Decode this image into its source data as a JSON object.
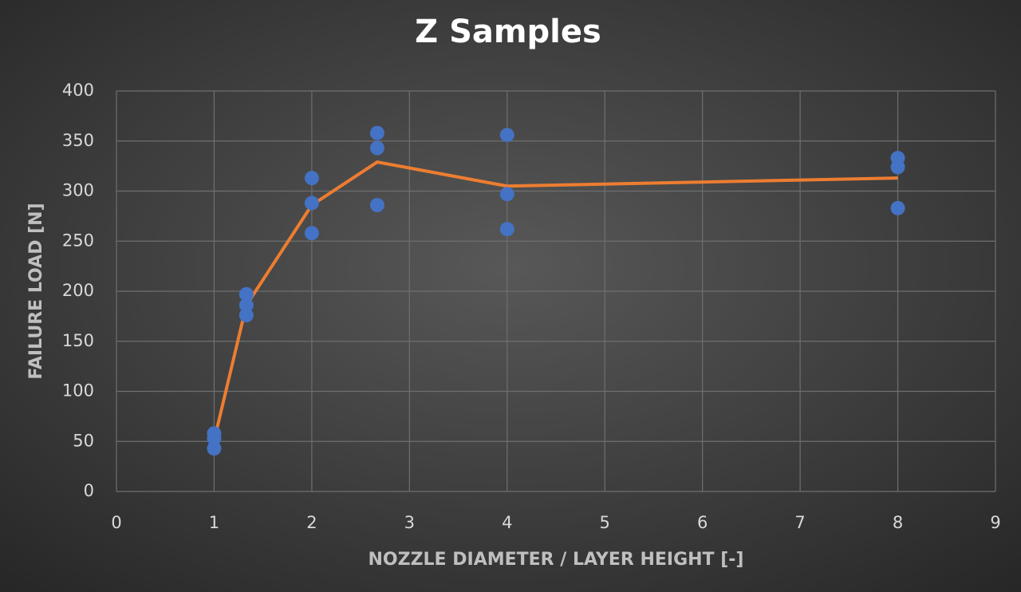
{
  "chart_data": {
    "type": "scatter",
    "title": "Z Samples",
    "x_label": "NOZZLE DIAMETER / LAYER HEIGHT [-]",
    "y_label": "FAILURE LOAD [N]",
    "xlim": [
      0,
      9
    ],
    "xticks": [
      0,
      1,
      2,
      3,
      4,
      5,
      6,
      7,
      8,
      9
    ],
    "ylim": [
      0,
      400
    ],
    "yticks": [
      0,
      50,
      100,
      150,
      200,
      250,
      300,
      350,
      400
    ],
    "grid": true,
    "series": [
      {
        "type": "scatter",
        "color": "#4472c4",
        "x": [
          1,
          1,
          1,
          1.33,
          1.33,
          1.33,
          2,
          2,
          2,
          2.67,
          2.67,
          2.67,
          4,
          4,
          4,
          8,
          8,
          8
        ],
        "values": [
          58,
          53,
          43,
          197,
          186,
          176,
          313,
          288,
          258,
          358,
          343,
          286,
          356,
          297,
          262,
          333,
          324,
          283
        ]
      },
      {
        "type": "line",
        "color": "#ed7d31",
        "x": [
          1,
          1.33,
          2,
          2.67,
          4,
          8
        ],
        "values": [
          51,
          186,
          286,
          329,
          305,
          313
        ]
      }
    ]
  }
}
